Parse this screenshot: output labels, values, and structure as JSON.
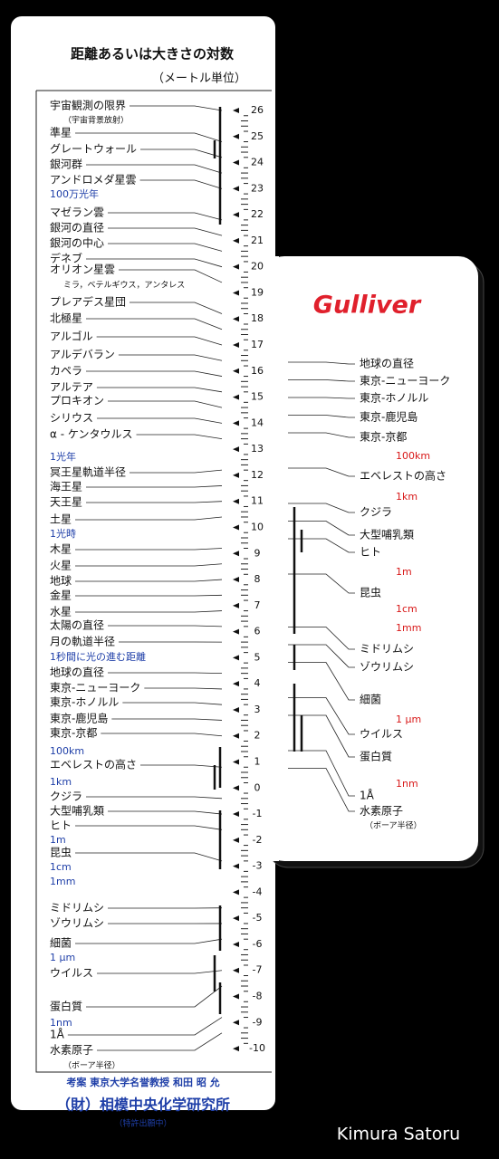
{
  "card": {
    "title": "距離あるいは大きさの対数",
    "subtitle": "（メートル単位）",
    "scale": [
      26,
      25,
      24,
      23,
      22,
      21,
      20,
      19,
      18,
      17,
      16,
      15,
      14,
      13,
      12,
      11,
      10,
      9,
      8,
      7,
      6,
      5,
      4,
      3,
      2,
      1,
      0,
      -1,
      -2,
      -3,
      -4,
      -5,
      -6,
      -7,
      -8,
      -9,
      -10
    ],
    "left_labels": [
      "宇宙観測の限界",
      "（宇宙背景放射）",
      "準星",
      "グレートウォール",
      "銀河群",
      "アンドロメダ星雲",
      "100万光年",
      "マゼラン雲",
      "銀河の直径",
      "銀河の中心",
      "デネブ",
      "オリオン星雲",
      "ミラ，ベテルギウス，アンタレス",
      "プレアデス星団",
      "北極星",
      "アルゴル",
      "アルデバラン",
      "カペラ",
      "アルテア",
      "プロキオン",
      "シリウス",
      "α - ケンタウルス",
      "1光年",
      "冥王星軌道半径",
      "海王星",
      "天王星",
      "土星",
      "1光時",
      "木星",
      "火星",
      "地球",
      "金星",
      "水星",
      "太陽の直径",
      "月の軌道半径",
      "1秒間に光の進む距離",
      "地球の直径",
      "東京-ニューヨーク",
      "東京-ホノルル",
      "東京-鹿児島",
      "東京-京都",
      "100km",
      "エベレストの高さ",
      "1km",
      "クジラ",
      "大型哺乳類",
      "ヒト",
      "1m",
      "昆虫",
      "1cm",
      "1mm",
      "ミドリムシ",
      "ゾウリムシ",
      "細菌",
      "1 μm",
      "ウイルス",
      "蛋白質",
      "1nm",
      "1Å",
      "水素原子",
      "（ボーア半径）"
    ],
    "footer": [
      "考案 東京大学名誉教授 和田 昭 允",
      "（財）相模中央化学研究所",
      "（特許出願中）"
    ]
  },
  "slider": {
    "brand": "Gulliver",
    "labels": [
      "地球の直径",
      "東京-ニューヨーク",
      "東京-ホノルル",
      "東京-鹿児島",
      "東京-京都",
      "100km",
      "エベレストの高さ",
      "1km",
      "クジラ",
      "大型哺乳類",
      "ヒト",
      "1m",
      "昆虫",
      "1cm",
      "1mm",
      "ミドリムシ",
      "ゾウリムシ",
      "細菌",
      "1 μm",
      "ウイルス",
      "蛋白質",
      "1nm",
      "1Å",
      "水素原子",
      "（ボーア半径）"
    ]
  },
  "watermark": "Kimura Satoru"
}
